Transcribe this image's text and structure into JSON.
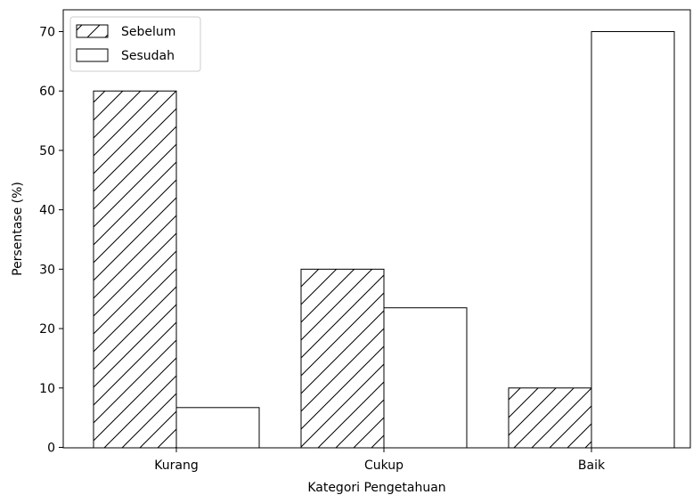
{
  "chart_data": {
    "type": "bar",
    "categories": [
      "Kurang",
      "Cukup",
      "Baik"
    ],
    "series": [
      {
        "name": "Sebelum",
        "values": [
          60,
          30,
          10
        ],
        "pattern": "hatch"
      },
      {
        "name": "Sesudah",
        "values": [
          6.7,
          23.5,
          70
        ],
        "pattern": "plain"
      }
    ],
    "xlabel": "Kategori Pengetahuan",
    "ylabel": "Persentase (%)",
    "ylim": [
      0,
      73.5
    ],
    "yticks": [
      0,
      10,
      20,
      30,
      40,
      50,
      60,
      70
    ],
    "ytick_labels": [
      "0",
      "10",
      "20",
      "30",
      "40",
      "50",
      "60",
      "70"
    ],
    "grid": false,
    "legend_position": "top-left",
    "colors": {
      "bar_fill": "#ffffff",
      "bar_edge": "#000000",
      "hatch": "#000000"
    }
  }
}
